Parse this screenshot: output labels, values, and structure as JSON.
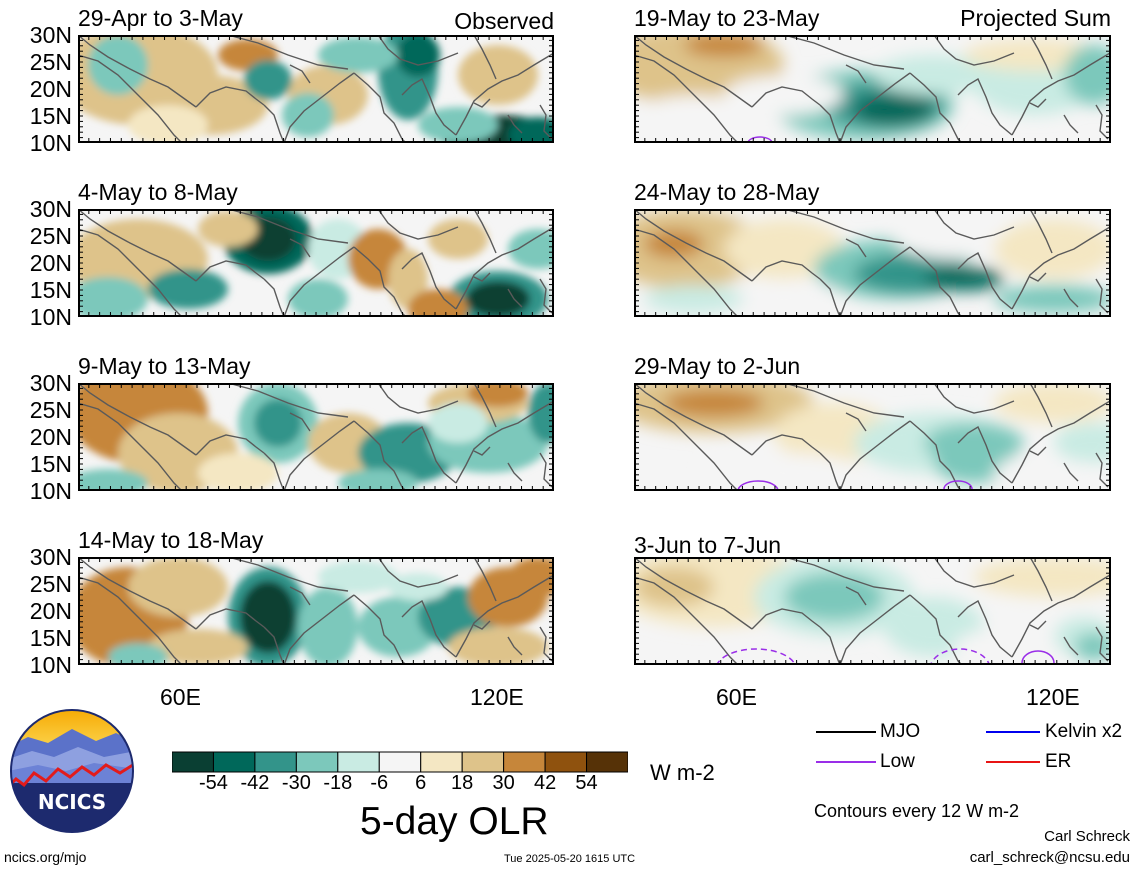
{
  "colors": {
    "levels": [
      "#0a3f33",
      "#00685a",
      "#33948a",
      "#7cc8bb",
      "#c9ebe3",
      "#f5f5f5",
      "#f4e7c3",
      "#dec38a",
      "#c6863a",
      "#8f520e",
      "#563207"
    ],
    "coast": "#5a5a5a",
    "mjo": "#000000",
    "kelvin": "#0000ee",
    "low": "#9a2ee8",
    "er": "#e81414"
  },
  "latitude_labels": [
    "30N",
    "25N",
    "20N",
    "15N",
    "10N"
  ],
  "longitude_labels": [
    "60E",
    "120E"
  ],
  "observed_label": "Observed",
  "projected_label": "Projected Sum",
  "panels": [
    {
      "title": "29-Apr to 3-May",
      "kind": "observed"
    },
    {
      "title": "4-May to 8-May",
      "kind": "observed"
    },
    {
      "title": "9-May to 13-May",
      "kind": "observed"
    },
    {
      "title": "14-May to 18-May",
      "kind": "observed"
    },
    {
      "title": "19-May to 23-May",
      "kind": "projected"
    },
    {
      "title": "24-May to 28-May",
      "kind": "projected"
    },
    {
      "title": "29-May to 2-Jun",
      "kind": "projected"
    },
    {
      "title": "3-Jun to 7-Jun",
      "kind": "projected"
    }
  ],
  "colorbar": {
    "tick_labels": [
      "-54",
      "-42",
      "-30",
      "-18",
      "-6",
      "6",
      "18",
      "30",
      "42",
      "54"
    ],
    "units": "W m-2",
    "title": "5-day OLR"
  },
  "legend": {
    "items": [
      {
        "label": "MJO",
        "color_key": "mjo"
      },
      {
        "label": "Kelvin x2",
        "color_key": "kelvin"
      },
      {
        "label": "Low",
        "color_key": "low"
      },
      {
        "label": "ER",
        "color_key": "er"
      }
    ],
    "contour_note": "Contours every 12 W m-2"
  },
  "logo_text": "NCICS",
  "footer": {
    "url": "ncics.org/mjo",
    "timestamp": "Tue 2025-05-20 1615 UTC",
    "author": "Carl Schreck",
    "email": "carl_schreck@ncsu.edu"
  }
}
